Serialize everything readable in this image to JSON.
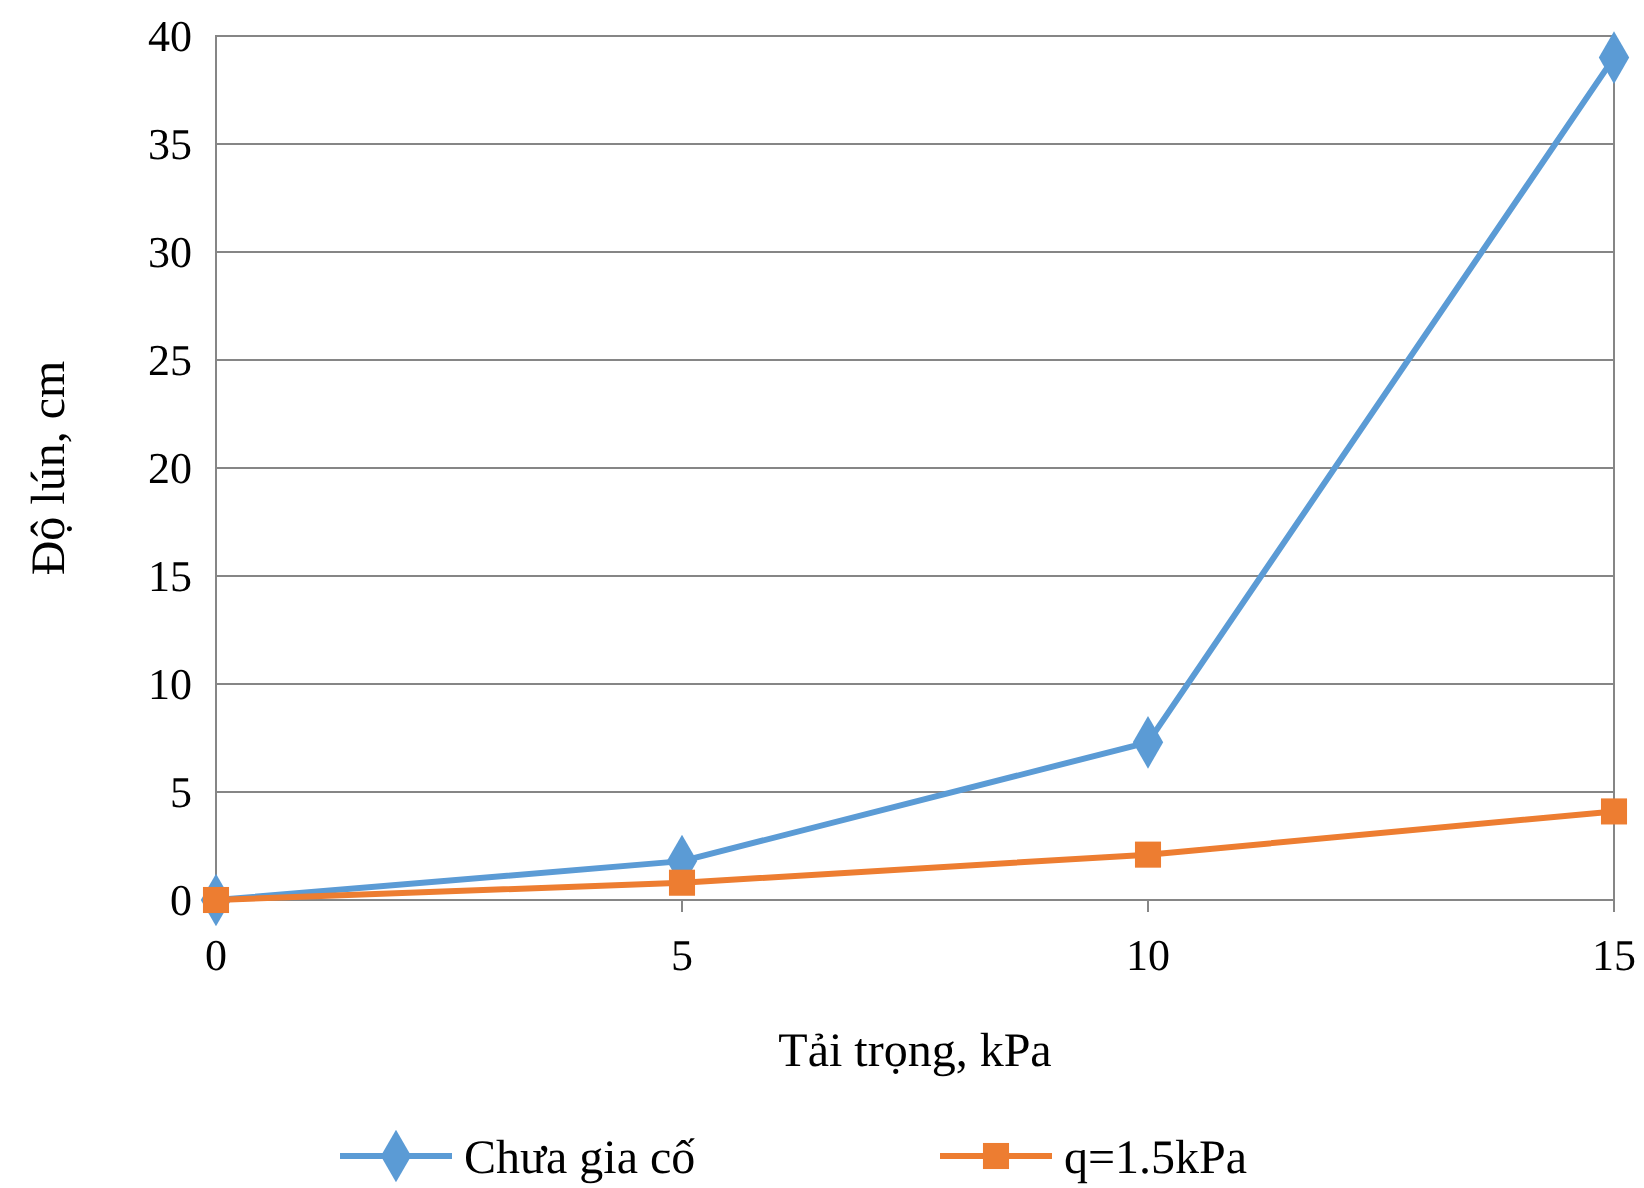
{
  "chart_data": {
    "type": "line",
    "xlabel": "Tải trọng, kPa",
    "ylabel": "Độ lún, cm",
    "x": [
      0,
      5,
      10,
      15
    ],
    "series": [
      {
        "name": "Chưa gia cố",
        "color": "#5b9bd5",
        "values": [
          0,
          1.8,
          7.3,
          39
        ],
        "marker": "diamond"
      },
      {
        "name": "q=1.5kPa",
        "color": "#ed7d31",
        "values": [
          0,
          0.8,
          2.1,
          4.1
        ],
        "marker": "square"
      }
    ],
    "xlim": [
      0,
      15
    ],
    "xticks": [
      0,
      5,
      10,
      15
    ],
    "ylim": [
      0,
      40
    ],
    "yticks": [
      0,
      5,
      10,
      15,
      20,
      25,
      30,
      35,
      40
    ],
    "grid": "y",
    "legend": "bottom",
    "line_style": "solid"
  }
}
